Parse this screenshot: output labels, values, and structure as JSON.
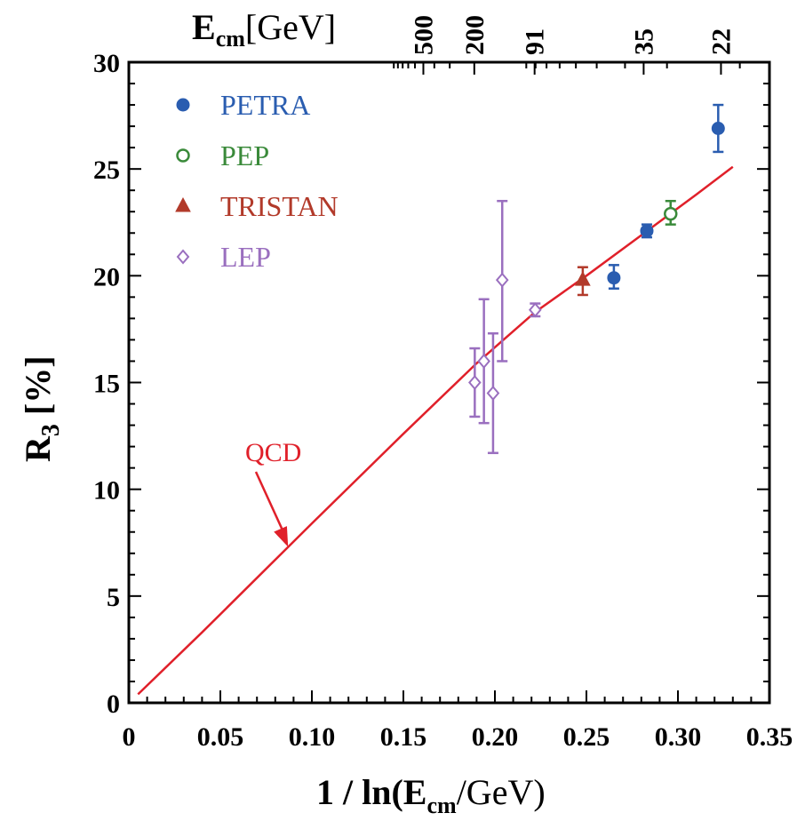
{
  "chart_data": {
    "type": "scatter",
    "xlabel": {
      "pre": "1 / ln(E",
      "sub": "cm",
      "post": "/GeV)"
    },
    "ylabel": {
      "main": "R",
      "sub": "3",
      "post": " [%]"
    },
    "top_axis_label": {
      "main": "E",
      "sub": "cm",
      "post": "[GeV]"
    },
    "xlim": [
      0,
      0.35
    ],
    "ylim": [
      0,
      30
    ],
    "x_ticks": [
      0,
      0.05,
      0.1,
      0.15,
      0.2,
      0.25,
      0.3,
      0.35
    ],
    "x_tick_labels": [
      "0",
      "0.05",
      "0.10",
      "0.15",
      "0.20",
      "0.25",
      "0.30",
      "0.35"
    ],
    "y_ticks": [
      0,
      5,
      10,
      15,
      20,
      25,
      30
    ],
    "y_tick_labels": [
      "0",
      "5",
      "10",
      "15",
      "20",
      "25",
      "30"
    ],
    "top_ticks": [
      {
        "label": "500",
        "value": 500
      },
      {
        "label": "200",
        "value": 200
      },
      {
        "label": "91",
        "value": 91
      },
      {
        "label": "35",
        "value": 35
      },
      {
        "label": "22",
        "value": 22
      }
    ],
    "legend_position": "top-left",
    "series": [
      {
        "name": "PETRA",
        "color": "#2a5db0",
        "marker": "filled-circle",
        "points": [
          {
            "x": 0.265,
            "y": 19.9,
            "ylo": 19.4,
            "yhi": 20.5
          },
          {
            "x": 0.283,
            "y": 22.1,
            "ylo": 21.8,
            "yhi": 22.4
          },
          {
            "x": 0.322,
            "y": 26.9,
            "ylo": 25.8,
            "yhi": 28.0
          }
        ]
      },
      {
        "name": "PEP",
        "color": "#3a8a3a",
        "marker": "open-circle",
        "points": [
          {
            "x": 0.296,
            "y": 22.9,
            "ylo": 22.4,
            "yhi": 23.5
          }
        ]
      },
      {
        "name": "TRISTAN",
        "color": "#b23a2a",
        "marker": "filled-triangle",
        "points": [
          {
            "x": 0.248,
            "y": 19.8,
            "ylo": 19.1,
            "yhi": 20.4
          }
        ]
      },
      {
        "name": "LEP",
        "color": "#9a6fbf",
        "marker": "open-diamond",
        "points": [
          {
            "x": 0.189,
            "y": 15.0,
            "ylo": 13.4,
            "yhi": 16.6
          },
          {
            "x": 0.194,
            "y": 16.0,
            "ylo": 13.1,
            "yhi": 18.9
          },
          {
            "x": 0.199,
            "y": 14.5,
            "ylo": 11.7,
            "yhi": 17.3
          },
          {
            "x": 0.204,
            "y": 19.8,
            "ylo": 16.0,
            "yhi": 23.5
          },
          {
            "x": 0.222,
            "y": 18.4,
            "ylo": 18.1,
            "yhi": 18.7
          }
        ]
      }
    ],
    "curve": {
      "name": "QCD",
      "color": "#e0202a",
      "x": [
        0.005,
        0.04,
        0.1,
        0.15,
        0.19,
        0.222,
        0.25,
        0.28,
        0.31,
        0.33
      ],
      "y": [
        0.4,
        3.3,
        8.4,
        12.6,
        15.9,
        18.3,
        20.0,
        21.9,
        23.8,
        25.1
      ]
    },
    "annotations": [
      {
        "text": "QCD",
        "color": "#e0202a",
        "arrow_to": {
          "x": 0.087,
          "y": 7.3
        }
      }
    ]
  }
}
